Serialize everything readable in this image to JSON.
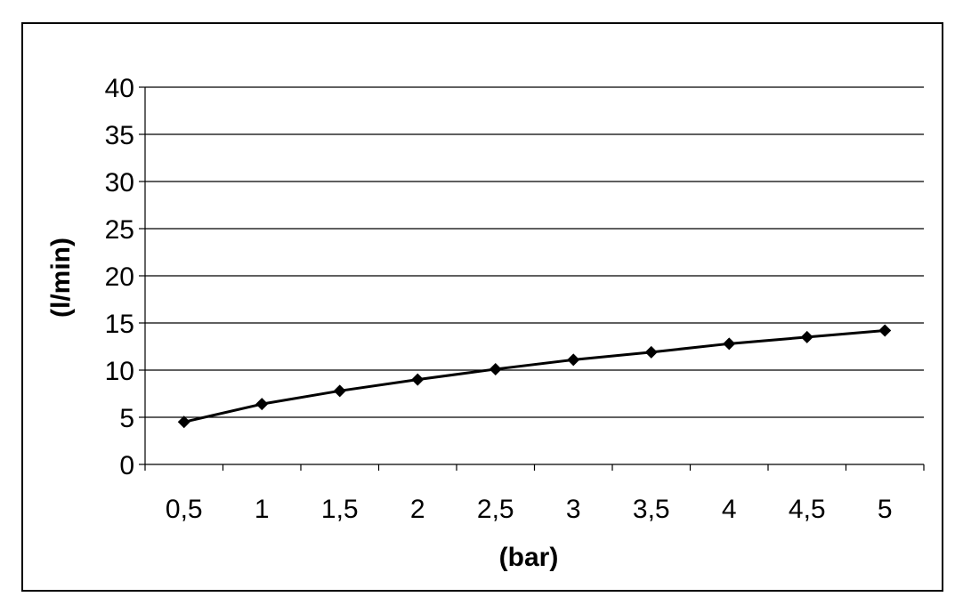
{
  "chart_data": {
    "type": "line",
    "title": "",
    "xlabel": "(bar)",
    "ylabel": "(l/min)",
    "categories": [
      "0,5",
      "1",
      "1,5",
      "2",
      "2,5",
      "3",
      "3,5",
      "4",
      "4,5",
      "5"
    ],
    "y_ticks": [
      "0",
      "5",
      "10",
      "15",
      "20",
      "25",
      "30",
      "35",
      "40"
    ],
    "ylim": [
      0,
      40
    ],
    "grid": true,
    "legend": "none",
    "series": [
      {
        "values": [
          4.5,
          6.4,
          7.8,
          9.0,
          10.1,
          11.1,
          11.9,
          12.8,
          13.5,
          14.2
        ],
        "color": "#000000",
        "marker": "diamond"
      }
    ]
  }
}
